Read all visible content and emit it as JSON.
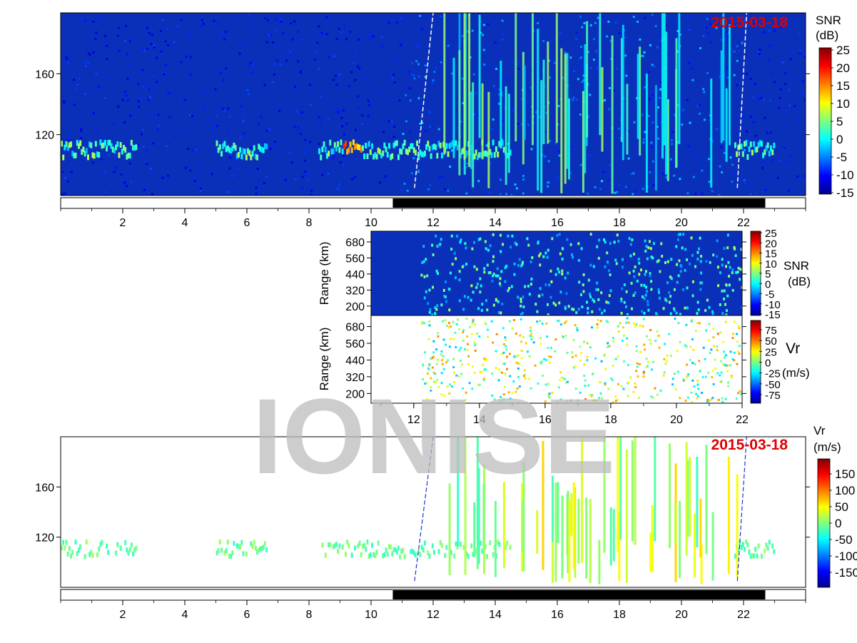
{
  "watermark": "IONISE",
  "colors": {
    "snr_background": "#0a2fb8",
    "vr_background": "#ffffff",
    "daylight_bar": "#000000",
    "date_text": "#e00000",
    "watermark": "#bdbdbd"
  },
  "chart_data": [
    {
      "id": "top_snr",
      "type": "heatmap",
      "date": "2015-03-18",
      "xlim": [
        0,
        24
      ],
      "x_ticks": [
        2,
        4,
        6,
        8,
        10,
        12,
        14,
        16,
        18,
        20,
        22
      ],
      "ylim": [
        80,
        200
      ],
      "y_ticks": [
        120,
        160
      ],
      "colorbar": {
        "title_line1": "SNR",
        "title_line2": "(dB)",
        "range": [
          -15,
          25
        ],
        "ticks": [
          "25",
          "20",
          "15",
          "10",
          "5",
          "0",
          "-5",
          "-10",
          "-15"
        ]
      },
      "daylight_bar": [
        10.7,
        22.7
      ],
      "terminator_lines": [
        [
          11.4,
          12.0
        ],
        [
          21.8,
          22.1
        ]
      ],
      "echo_layer": {
        "center_range": 110,
        "segments": [
          [
            0,
            2.4
          ],
          [
            5.0,
            6.6
          ],
          [
            8.3,
            13.2
          ],
          [
            13.2,
            14.5
          ],
          [
            21.7,
            23.0
          ]
        ]
      }
    },
    {
      "id": "mid_snr",
      "type": "heatmap",
      "xlim": [
        10.7,
        22
      ],
      "ylim": [
        130,
        760
      ],
      "y_ticks": [
        200,
        320,
        440,
        560,
        680
      ],
      "ylabel": "Range (km)",
      "colorbar": {
        "title_line1": "SNR",
        "title_line2": "(dB)",
        "range": [
          -15,
          25
        ],
        "ticks": [
          "25",
          "20",
          "15",
          "10",
          "5",
          "0",
          "-5",
          "-10",
          "-15"
        ]
      }
    },
    {
      "id": "mid_vr",
      "type": "heatmap",
      "xlim": [
        10.7,
        22
      ],
      "x_ticks": [
        12,
        14,
        16,
        18,
        20,
        22
      ],
      "ylim": [
        130,
        760
      ],
      "y_ticks": [
        200,
        320,
        440,
        560,
        680
      ],
      "ylabel": "Range (km)",
      "colorbar": {
        "title": "Vr",
        "title_sub": "r",
        "unit": "(m/s)",
        "range": [
          -75,
          75
        ],
        "ticks": [
          "75",
          "50",
          "25",
          "0",
          "-25",
          "-50",
          "-75"
        ]
      }
    },
    {
      "id": "bottom_vr",
      "type": "heatmap",
      "date": "2015-03-18",
      "xlim": [
        0,
        24
      ],
      "x_ticks": [
        2,
        4,
        6,
        8,
        10,
        12,
        14,
        16,
        18,
        20,
        22
      ],
      "ylim": [
        80,
        200
      ],
      "y_ticks": [
        120,
        160
      ],
      "colorbar": {
        "title_line1": "Vr",
        "title_line2": "(m/s)",
        "range": [
          -175,
          175
        ],
        "ticks": [
          "150",
          "100",
          "50",
          "0",
          "-50",
          "-100",
          "-150"
        ]
      },
      "daylight_bar": [
        10.7,
        22.7
      ],
      "terminator_lines": [
        [
          11.4,
          12.0
        ],
        [
          21.8,
          22.1
        ]
      ]
    }
  ]
}
